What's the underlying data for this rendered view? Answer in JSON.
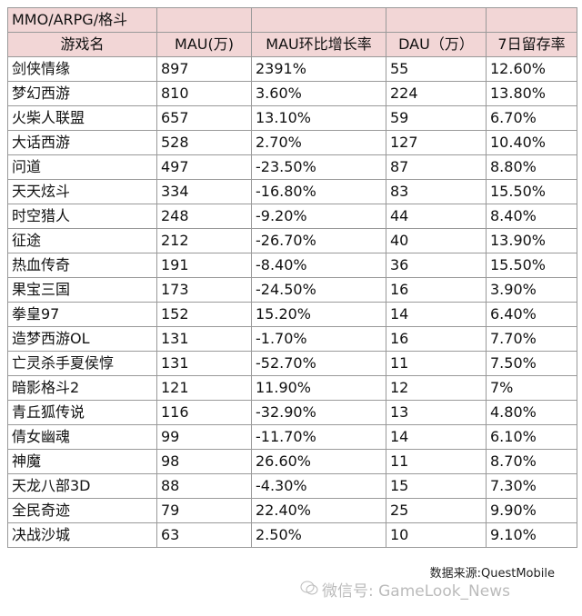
{
  "table": {
    "title": "MMO/ARPG/格斗",
    "header": [
      "游戏名",
      "MAU(万)",
      "MAU环比增长率",
      "DAU（万）",
      "7日留存率"
    ],
    "rows": [
      [
        "剑侠情缘",
        "897",
        "2391%",
        "55",
        "12.60%"
      ],
      [
        "梦幻西游",
        "810",
        "3.60%",
        "224",
        "13.80%"
      ],
      [
        "火柴人联盟",
        "657",
        "13.10%",
        "59",
        "6.70%"
      ],
      [
        "大话西游",
        "528",
        "2.70%",
        "127",
        "10.40%"
      ],
      [
        "问道",
        "497",
        "-23.50%",
        "87",
        "8.80%"
      ],
      [
        "天天炫斗",
        "334",
        "-16.80%",
        "83",
        "15.50%"
      ],
      [
        "时空猎人",
        "248",
        "-9.20%",
        "44",
        "8.40%"
      ],
      [
        "征途",
        "212",
        "-26.70%",
        "40",
        "13.90%"
      ],
      [
        "热血传奇",
        "191",
        "-8.40%",
        "36",
        "15.50%"
      ],
      [
        "果宝三国",
        "173",
        "-24.50%",
        "16",
        "3.90%"
      ],
      [
        "拳皇97",
        "152",
        "15.20%",
        "14",
        "6.40%"
      ],
      [
        "造梦西游OL",
        "131",
        "-1.70%",
        "16",
        "7.70%"
      ],
      [
        "亡灵杀手夏侯惇",
        "131",
        "-52.70%",
        "11",
        "7.50%"
      ],
      [
        "暗影格斗2",
        "121",
        "11.90%",
        "12",
        "7%"
      ],
      [
        "青丘狐传说",
        "116",
        "-32.90%",
        "13",
        "4.80%"
      ],
      [
        "倩女幽魂",
        "99",
        "-11.70%",
        "14",
        "6.10%"
      ],
      [
        "神魔",
        "98",
        "26.60%",
        "11",
        "8.70%"
      ],
      [
        "天龙八部3D",
        "88",
        "-4.30%",
        "15",
        "7.30%"
      ],
      [
        "全民奇迹",
        "79",
        "22.40%",
        "25",
        "9.90%"
      ],
      [
        "决战沙城",
        "63",
        "2.50%",
        "10",
        "9.10%"
      ]
    ]
  },
  "source": "数据来源:QuestMobile",
  "watermark": "微信号: GameLook_News"
}
